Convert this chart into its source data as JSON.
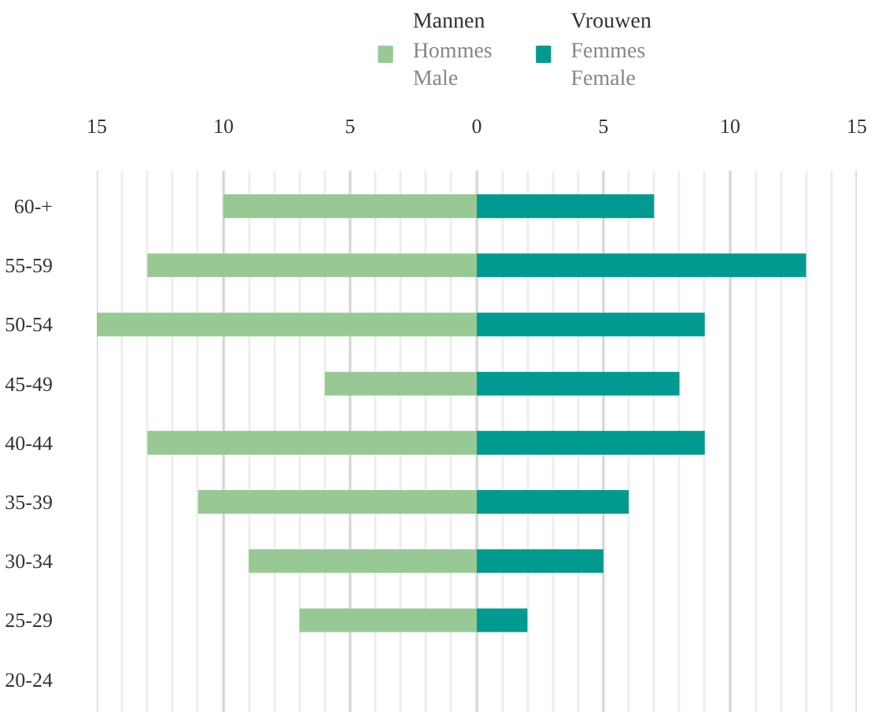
{
  "chart_data": {
    "type": "bar",
    "orientation": "horizontal",
    "stacked": true,
    "categories": [
      "60-+",
      "55-59",
      "50-54",
      "45-49",
      "40-44",
      "35-39",
      "30-34",
      "25-29",
      "20-24"
    ],
    "series": [
      {
        "name": "Mannen\nHommes\nMale",
        "color": "#98c994",
        "values": [
          -10,
          -13,
          -15,
          -6,
          -13,
          -11,
          -9,
          -7,
          0
        ]
      },
      {
        "name": "Vrouwen\nFemmes\nFemale",
        "color": "#009a90",
        "values": [
          7,
          13,
          9,
          8,
          9,
          6,
          5,
          2,
          0
        ]
      }
    ],
    "xlim": [
      -15,
      15
    ],
    "xticks": [
      {
        "value": -15,
        "label": "15"
      },
      {
        "value": -14,
        "label": null
      },
      {
        "value": -13,
        "label": null
      },
      {
        "value": -12,
        "label": null
      },
      {
        "value": -11,
        "label": null
      },
      {
        "value": -10,
        "label": "10"
      },
      {
        "value": -9,
        "label": null
      },
      {
        "value": -8,
        "label": null
      },
      {
        "value": -7,
        "label": null
      },
      {
        "value": -6,
        "label": null
      },
      {
        "value": -5,
        "label": "5"
      },
      {
        "value": -4,
        "label": null
      },
      {
        "value": -3,
        "label": null
      },
      {
        "value": -2,
        "label": null
      },
      {
        "value": -1,
        "label": null
      },
      0,
      {
        "value": 1,
        "label": null
      },
      {
        "value": 2,
        "label": null
      },
      {
        "value": 3,
        "label": null
      },
      {
        "value": 4,
        "label": null
      },
      5,
      {
        "value": 6,
        "label": null
      },
      {
        "value": 7,
        "label": null
      },
      {
        "value": 8,
        "label": null
      },
      {
        "value": 9,
        "label": null
      },
      10,
      {
        "value": 11,
        "label": null
      },
      {
        "value": 12,
        "label": null
      },
      {
        "value": 13,
        "label": null
      },
      {
        "value": 14,
        "label": null
      },
      15
    ],
    "grid": "x",
    "legend": "top"
  }
}
